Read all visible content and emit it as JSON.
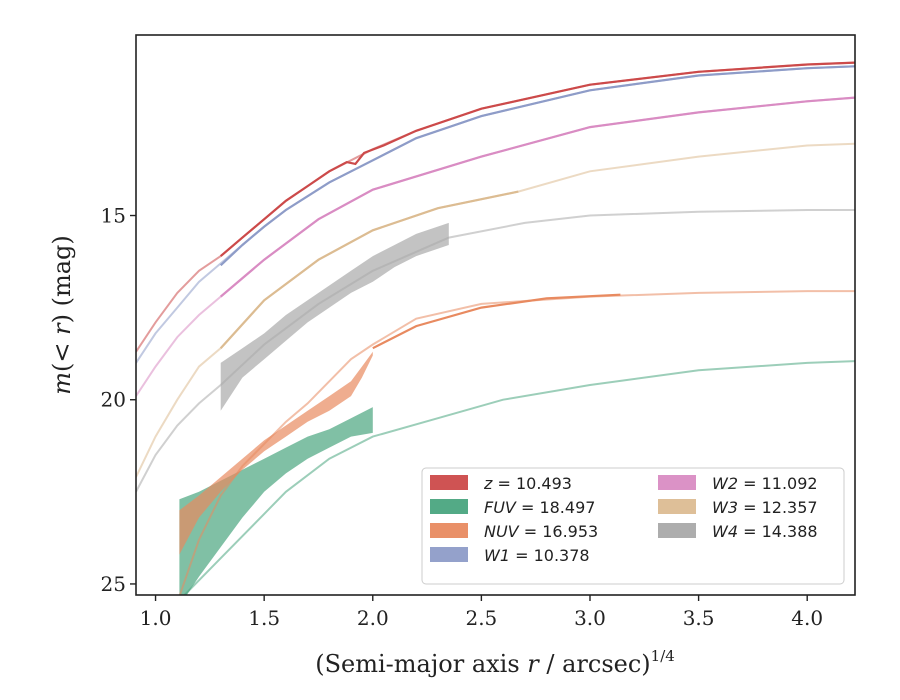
{
  "chart_data": {
    "type": "line",
    "xlabel": "(Semi-major axis r / arcsec)",
    "xlabel_parts": {
      "prefix": "(Semi-major axis ",
      "var": "r",
      "suffix": " / arcsec)",
      "exponent": "1/4"
    },
    "ylabel": "m(< r) (mag)",
    "ylabel_parts": {
      "m": "m",
      "open": "(",
      "lt": "< ",
      "var": "r",
      "close": ") (mag)"
    },
    "xlim": [
      0.91,
      4.22
    ],
    "ylim": [
      25.3,
      10.1
    ],
    "y_inverted": true,
    "x_ticks": [
      "1.0",
      "1.5",
      "2.0",
      "2.5",
      "3.0",
      "3.5",
      "4.0"
    ],
    "x_tick_values": [
      1.0,
      1.5,
      2.0,
      2.5,
      3.0,
      3.5,
      4.0
    ],
    "y_ticks": [
      "15",
      "20",
      "25"
    ],
    "y_tick_values": [
      15,
      20,
      25
    ],
    "legend_position": "lower-right",
    "series": [
      {
        "name": "z",
        "label_var": "z",
        "label_value": "= 10.493",
        "color": "#cc4a4a",
        "faint": [
          [
            0.91,
            18.7
          ],
          [
            1.0,
            17.9
          ],
          [
            1.1,
            17.1
          ],
          [
            1.2,
            16.5
          ],
          [
            1.3,
            16.1
          ],
          [
            1.4,
            15.6
          ],
          [
            1.5,
            15.1
          ],
          [
            1.6,
            14.6
          ],
          [
            1.7,
            14.2
          ],
          [
            1.8,
            13.8
          ],
          [
            1.9,
            13.5
          ],
          [
            2.0,
            13.2
          ],
          [
            2.2,
            12.7
          ],
          [
            2.5,
            12.1
          ],
          [
            3.0,
            11.45
          ],
          [
            3.5,
            11.1
          ],
          [
            4.0,
            10.9
          ],
          [
            4.22,
            10.85
          ]
        ],
        "solid": [
          [
            1.3,
            16.1
          ],
          [
            1.4,
            15.6
          ],
          [
            1.5,
            15.1
          ],
          [
            1.6,
            14.6
          ],
          [
            1.7,
            14.2
          ],
          [
            1.8,
            13.8
          ],
          [
            1.88,
            13.55
          ],
          [
            1.92,
            13.6
          ],
          [
            1.96,
            13.3
          ],
          [
            2.05,
            13.1
          ],
          [
            2.2,
            12.7
          ],
          [
            2.5,
            12.1
          ],
          [
            3.0,
            11.45
          ],
          [
            3.5,
            11.1
          ],
          [
            4.0,
            10.9
          ],
          [
            4.22,
            10.85
          ]
        ]
      },
      {
        "name": "FUV",
        "label_var": "FUV",
        "label_value": "= 18.497",
        "color": "#4aa57f",
        "faint": [
          [
            1.1,
            25.5
          ],
          [
            1.3,
            24.3
          ],
          [
            1.5,
            23.1
          ],
          [
            1.6,
            22.5
          ],
          [
            1.8,
            21.6
          ],
          [
            2.0,
            21.0
          ],
          [
            2.3,
            20.5
          ],
          [
            2.6,
            20.0
          ],
          [
            3.0,
            19.6
          ],
          [
            3.5,
            19.2
          ],
          [
            4.0,
            19.0
          ],
          [
            4.22,
            18.95
          ]
        ],
        "band_x": [
          1.11,
          1.2,
          1.3,
          1.4,
          1.5,
          1.6,
          1.7,
          1.8,
          1.9,
          2.0
        ],
        "band_lo": [
          25.6,
          24.8,
          24.0,
          23.2,
          22.5,
          22.0,
          21.6,
          21.3,
          21.0,
          20.9
        ],
        "band_hi": [
          22.7,
          22.5,
          22.2,
          21.9,
          21.6,
          21.3,
          21.0,
          20.8,
          20.5,
          20.2
        ]
      },
      {
        "name": "NUV",
        "label_var": "NUV",
        "label_value": "= 16.953",
        "color": "#e88a60",
        "faint": [
          [
            1.1,
            25.5
          ],
          [
            1.2,
            23.8
          ],
          [
            1.3,
            22.6
          ],
          [
            1.4,
            21.8
          ],
          [
            1.5,
            21.2
          ],
          [
            1.6,
            20.6
          ],
          [
            1.7,
            20.1
          ],
          [
            1.8,
            19.5
          ],
          [
            1.9,
            18.9
          ],
          [
            2.0,
            18.5
          ],
          [
            2.2,
            17.8
          ],
          [
            2.5,
            17.4
          ],
          [
            3.0,
            17.2
          ],
          [
            3.5,
            17.1
          ],
          [
            4.0,
            17.05
          ],
          [
            4.22,
            17.05
          ]
        ],
        "solid": [
          [
            2.0,
            18.6
          ],
          [
            2.2,
            18.0
          ],
          [
            2.5,
            17.5
          ],
          [
            2.8,
            17.25
          ],
          [
            3.14,
            17.15
          ]
        ],
        "band_x": [
          1.11,
          1.2,
          1.3,
          1.4,
          1.5,
          1.6,
          1.7,
          1.8,
          1.9,
          1.95,
          2.0
        ],
        "band_lo": [
          24.2,
          23.2,
          22.5,
          21.9,
          21.4,
          21.0,
          20.6,
          20.3,
          19.9,
          19.4,
          18.8
        ],
        "band_hi": [
          23.0,
          22.6,
          22.1,
          21.6,
          21.1,
          20.7,
          20.3,
          19.9,
          19.5,
          19.1,
          18.7
        ]
      },
      {
        "name": "W1",
        "label_var": "W1",
        "label_value": "= 10.378",
        "color": "#8e9cc8",
        "faint": [
          [
            0.91,
            19.0
          ],
          [
            1.0,
            18.2
          ],
          [
            1.1,
            17.5
          ],
          [
            1.2,
            16.8
          ],
          [
            1.3,
            16.3
          ],
          [
            1.4,
            15.8
          ],
          [
            1.5,
            15.3
          ],
          [
            1.6,
            14.85
          ],
          [
            1.8,
            14.1
          ],
          [
            2.0,
            13.5
          ],
          [
            2.2,
            12.9
          ],
          [
            2.5,
            12.3
          ],
          [
            3.0,
            11.6
          ],
          [
            3.5,
            11.2
          ],
          [
            4.0,
            11.0
          ],
          [
            4.22,
            10.95
          ]
        ],
        "solid": [
          [
            1.3,
            16.35
          ],
          [
            1.4,
            15.8
          ],
          [
            1.5,
            15.3
          ],
          [
            1.6,
            14.85
          ],
          [
            1.8,
            14.1
          ],
          [
            2.0,
            13.5
          ],
          [
            2.2,
            12.9
          ],
          [
            2.5,
            12.3
          ],
          [
            3.0,
            11.6
          ],
          [
            3.5,
            11.2
          ],
          [
            4.0,
            11.0
          ],
          [
            4.22,
            10.95
          ]
        ]
      },
      {
        "name": "W2",
        "label_var": "W2",
        "label_value": "= 11.092",
        "color": "#d98cc3",
        "faint": [
          [
            0.91,
            19.9
          ],
          [
            1.0,
            19.1
          ],
          [
            1.1,
            18.3
          ],
          [
            1.2,
            17.7
          ],
          [
            1.3,
            17.2
          ],
          [
            1.5,
            16.2
          ],
          [
            1.75,
            15.1
          ],
          [
            2.0,
            14.3
          ],
          [
            2.5,
            13.4
          ],
          [
            3.0,
            12.6
          ],
          [
            3.5,
            12.2
          ],
          [
            4.0,
            11.9
          ],
          [
            4.22,
            11.8
          ]
        ],
        "solid": [
          [
            1.3,
            17.2
          ],
          [
            1.5,
            16.2
          ],
          [
            1.75,
            15.1
          ],
          [
            2.0,
            14.3
          ],
          [
            2.5,
            13.4
          ],
          [
            3.0,
            12.6
          ],
          [
            3.5,
            12.2
          ],
          [
            4.0,
            11.9
          ],
          [
            4.22,
            11.8
          ]
        ]
      },
      {
        "name": "W3",
        "label_var": "W3",
        "label_value": "= 12.357",
        "color": "#dcbc92",
        "faint": [
          [
            0.91,
            22.1
          ],
          [
            1.0,
            21.0
          ],
          [
            1.1,
            20.0
          ],
          [
            1.2,
            19.1
          ],
          [
            1.3,
            18.6
          ],
          [
            1.5,
            17.3
          ],
          [
            1.75,
            16.2
          ],
          [
            2.0,
            15.4
          ],
          [
            2.3,
            14.8
          ],
          [
            2.67,
            14.35
          ],
          [
            3.0,
            13.8
          ],
          [
            3.5,
            13.4
          ],
          [
            4.0,
            13.1
          ],
          [
            4.22,
            13.05
          ]
        ],
        "solid": [
          [
            1.3,
            18.6
          ],
          [
            1.5,
            17.3
          ],
          [
            1.75,
            16.2
          ],
          [
            2.0,
            15.4
          ],
          [
            2.3,
            14.8
          ],
          [
            2.67,
            14.35
          ]
        ]
      },
      {
        "name": "W4",
        "label_var": "W4",
        "label_value": "= 14.388",
        "color": "#a9a9a9",
        "faint": [
          [
            0.91,
            22.5
          ],
          [
            1.0,
            21.5
          ],
          [
            1.1,
            20.7
          ],
          [
            1.2,
            20.1
          ],
          [
            1.3,
            19.6
          ],
          [
            1.5,
            18.5
          ],
          [
            1.75,
            17.4
          ],
          [
            2.0,
            16.5
          ],
          [
            2.35,
            15.6
          ],
          [
            2.7,
            15.2
          ],
          [
            3.0,
            15.0
          ],
          [
            3.5,
            14.9
          ],
          [
            4.0,
            14.85
          ],
          [
            4.22,
            14.85
          ]
        ],
        "band_x": [
          1.3,
          1.4,
          1.5,
          1.6,
          1.7,
          1.8,
          1.9,
          2.0,
          2.1,
          2.2,
          2.35
        ],
        "band_lo": [
          20.3,
          19.4,
          18.9,
          18.4,
          17.9,
          17.5,
          17.1,
          16.8,
          16.4,
          16.1,
          15.8
        ],
        "band_hi": [
          19.0,
          18.6,
          18.2,
          17.7,
          17.3,
          16.9,
          16.5,
          16.1,
          15.8,
          15.5,
          15.2
        ]
      }
    ],
    "legend_columns": [
      [
        "z",
        "FUV",
        "NUV",
        "W1"
      ],
      [
        "W2",
        "W3",
        "W4"
      ]
    ]
  }
}
